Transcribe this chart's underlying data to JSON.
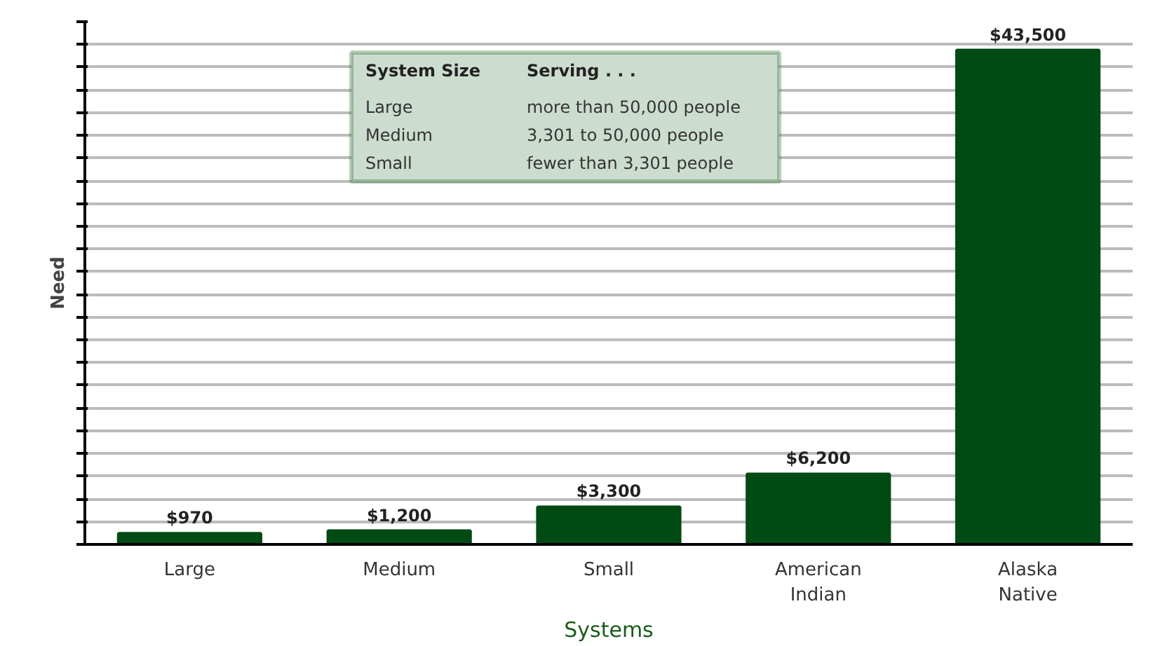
{
  "chart_data": {
    "type": "bar",
    "xlabel": "Systems",
    "ylabel": "Need",
    "categories": [
      "Large",
      "Medium",
      "Small",
      "American Indian",
      "Alaska Native"
    ],
    "values": [
      970,
      1200,
      3300,
      6200,
      43500
    ],
    "value_labels": [
      "$970",
      "$1,200",
      "$3,300",
      "$6,200",
      "$43,500"
    ],
    "color": "#004a14",
    "ylim": [
      0,
      46000
    ],
    "yticks": [
      {
        "value": 0,
        "label": null
      },
      {
        "value": 2000,
        "label": null
      },
      {
        "value": 4000,
        "label": null
      },
      {
        "value": 6000,
        "label": null
      },
      {
        "value": 8000,
        "label": null
      },
      {
        "value": 10000,
        "label": null
      },
      {
        "value": 12000,
        "label": null
      },
      {
        "value": 14000,
        "label": null
      },
      {
        "value": 16000,
        "label": null
      },
      {
        "value": 18000,
        "label": null
      },
      {
        "value": 20000,
        "label": null
      },
      {
        "value": 22000,
        "label": null
      },
      {
        "value": 24000,
        "label": null
      },
      {
        "value": 26000,
        "label": null
      },
      {
        "value": 28000,
        "label": null
      },
      {
        "value": 30000,
        "label": null
      },
      {
        "value": 32000,
        "label": null
      },
      {
        "value": 34000,
        "label": null
      },
      {
        "value": 36000,
        "label": null
      },
      {
        "value": 38000,
        "label": null
      },
      {
        "value": 40000,
        "label": null
      },
      {
        "value": 42000,
        "label": null
      },
      {
        "value": 44000,
        "label": null
      },
      {
        "value": 46000,
        "label": null
      }
    ],
    "grid": "y",
    "tick_labels": "x",
    "annotations": [
      "System Size",
      "Serving . . .",
      "Large",
      "more than 50,000 people",
      "Medium",
      "3,301 to 50,000 people",
      "Small",
      "fewer than 3,301 people"
    ]
  }
}
